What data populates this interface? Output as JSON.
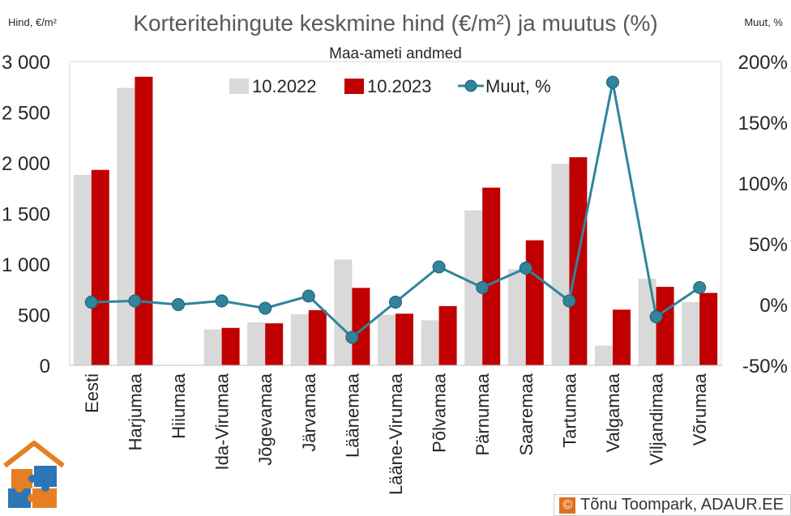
{
  "chart_data": {
    "type": "bar",
    "title": "Korteritehingute keskmine hind (€/m²) ja muutus (%)",
    "subtitle": "Maa-ameti andmed",
    "left_axis_label": "Hind, €/m²",
    "right_axis_label": "Muut, %",
    "categories": [
      "Eesti",
      "Harjumaa",
      "Hiiumaa",
      "Ida-Virumaa",
      "Jõgevamaa",
      "Järvamaa",
      "Läänemaa",
      "Lääne-Virumaa",
      "Põlvamaa",
      "Pärnumaa",
      "Saaremaa",
      "Tartumaa",
      "Valgamaa",
      "Viljandimaa",
      "Võrumaa"
    ],
    "series": [
      {
        "name": "10.2022",
        "kind": "bar",
        "axis": "left",
        "color": "#d9d9d9",
        "values": [
          1880,
          2740,
          null,
          355,
          425,
          505,
          1045,
          500,
          445,
          1530,
          950,
          1990,
          195,
          855,
          625
        ]
      },
      {
        "name": "10.2023",
        "kind": "bar",
        "axis": "left",
        "color": "#c00000",
        "values": [
          1930,
          2850,
          null,
          370,
          415,
          545,
          765,
          510,
          585,
          1755,
          1235,
          2055,
          550,
          775,
          715
        ]
      },
      {
        "name": "Muut, %",
        "kind": "line",
        "axis": "right",
        "color": "#31849b",
        "values": [
          2,
          3,
          0,
          3,
          -3,
          7,
          -27,
          2,
          31,
          14,
          30,
          3,
          183,
          -10,
          14
        ]
      }
    ],
    "y_left": {
      "min": 0,
      "max": 3000,
      "ticks": [
        0,
        500,
        1000,
        1500,
        2000,
        2500,
        3000
      ],
      "tick_labels": [
        "0",
        "500",
        "1 000",
        "1 500",
        "2 000",
        "2 500",
        "3 000"
      ]
    },
    "y_right": {
      "min": -50,
      "max": 200,
      "ticks": [
        -50,
        0,
        50,
        100,
        150,
        200
      ],
      "tick_labels": [
        "-50%",
        "0%",
        "50%",
        "100%",
        "150%",
        "200%"
      ]
    },
    "grid": false,
    "legend_position": "top-center"
  },
  "credit": {
    "copyright_symbol": "©",
    "text": "Tõnu Toompark, ADAUR.EE"
  }
}
